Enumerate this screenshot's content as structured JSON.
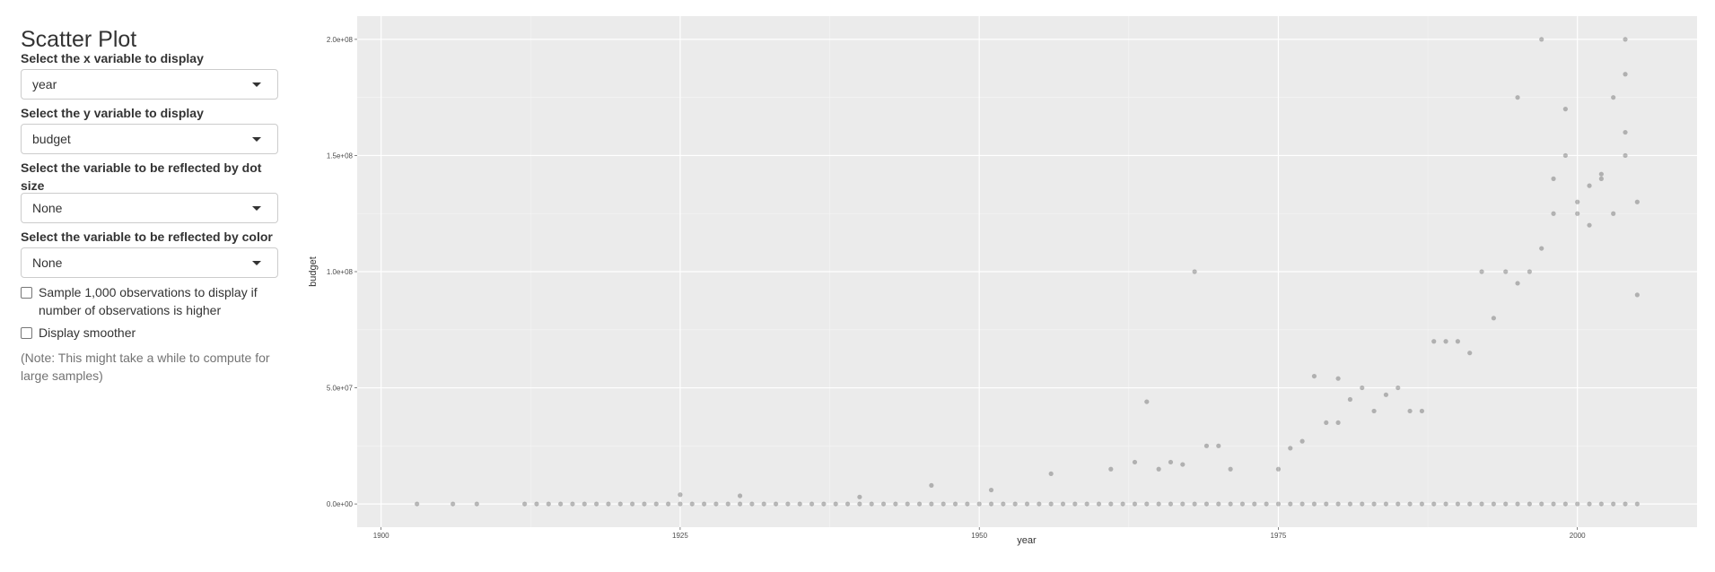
{
  "sidebar": {
    "title": "Scatter Plot",
    "x_label": "Select the x variable to display",
    "x_value": "year",
    "y_label": "Select the y variable to display",
    "y_value": "budget",
    "size_label": "Select the variable to be reflected by dot size",
    "size_value": "None",
    "color_label": "Select the variable to be reflected by color",
    "color_value": "None",
    "sample_label": "Sample 1,000 observations to display if number of observations is higher",
    "smoother_label": "Display smoother",
    "note": "(Note: This might take a while to compute for large samples)"
  },
  "chart_data": {
    "type": "scatter",
    "title": "",
    "xlabel": "year",
    "ylabel": "budget",
    "xlim": [
      1898,
      2010
    ],
    "ylim": [
      -10000000.0,
      210000000.0
    ],
    "xticks": [
      1900,
      1925,
      1950,
      1975,
      2000
    ],
    "xtick_labels": [
      "1900",
      "1925",
      "1950",
      "1975",
      "2000"
    ],
    "yticks": [
      0,
      50000000,
      100000000,
      150000000,
      200000000
    ],
    "ytick_labels": [
      "0.0e+00",
      "5.0e+07",
      "1.0e+08",
      "1.5e+08",
      "2.0e+08"
    ],
    "grid": true,
    "point_color": "#000000",
    "point_alpha": 0.25,
    "points": [
      [
        1903,
        0
      ],
      [
        1906,
        0
      ],
      [
        1908,
        0
      ],
      [
        1912,
        0
      ],
      [
        1913,
        0
      ],
      [
        1914,
        0
      ],
      [
        1915,
        0
      ],
      [
        1916,
        0
      ],
      [
        1917,
        0
      ],
      [
        1918,
        0
      ],
      [
        1919,
        0
      ],
      [
        1920,
        0
      ],
      [
        1921,
        0
      ],
      [
        1922,
        0
      ],
      [
        1923,
        0
      ],
      [
        1924,
        0
      ],
      [
        1925,
        0
      ],
      [
        1925,
        4000000
      ],
      [
        1926,
        0
      ],
      [
        1927,
        0
      ],
      [
        1928,
        0
      ],
      [
        1929,
        0
      ],
      [
        1930,
        0
      ],
      [
        1930,
        3500000
      ],
      [
        1931,
        0
      ],
      [
        1932,
        0
      ],
      [
        1933,
        0
      ],
      [
        1934,
        0
      ],
      [
        1935,
        0
      ],
      [
        1936,
        0
      ],
      [
        1937,
        0
      ],
      [
        1938,
        0
      ],
      [
        1939,
        0
      ],
      [
        1940,
        0
      ],
      [
        1940,
        3000000
      ],
      [
        1941,
        0
      ],
      [
        1942,
        0
      ],
      [
        1943,
        0
      ],
      [
        1944,
        0
      ],
      [
        1945,
        0
      ],
      [
        1946,
        0
      ],
      [
        1946,
        8000000
      ],
      [
        1947,
        0
      ],
      [
        1948,
        0
      ],
      [
        1949,
        0
      ],
      [
        1950,
        0
      ],
      [
        1951,
        0
      ],
      [
        1951,
        6000000
      ],
      [
        1952,
        0
      ],
      [
        1953,
        0
      ],
      [
        1954,
        0
      ],
      [
        1955,
        0
      ],
      [
        1956,
        0
      ],
      [
        1956,
        13000000
      ],
      [
        1957,
        0
      ],
      [
        1958,
        0
      ],
      [
        1959,
        0
      ],
      [
        1960,
        0
      ],
      [
        1961,
        0
      ],
      [
        1961,
        15000000
      ],
      [
        1962,
        0
      ],
      [
        1963,
        0
      ],
      [
        1963,
        18000000
      ],
      [
        1964,
        0
      ],
      [
        1964,
        44000000
      ],
      [
        1965,
        0
      ],
      [
        1965,
        15000000
      ],
      [
        1966,
        0
      ],
      [
        1966,
        18000000
      ],
      [
        1967,
        0
      ],
      [
        1967,
        17000000
      ],
      [
        1968,
        0
      ],
      [
        1968,
        100000000
      ],
      [
        1969,
        0
      ],
      [
        1969,
        25000000
      ],
      [
        1970,
        0
      ],
      [
        1970,
        25000000
      ],
      [
        1971,
        0
      ],
      [
        1971,
        15000000
      ],
      [
        1972,
        0
      ],
      [
        1973,
        0
      ],
      [
        1974,
        0
      ],
      [
        1975,
        0
      ],
      [
        1975,
        15000000
      ],
      [
        1976,
        0
      ],
      [
        1976,
        24000000
      ],
      [
        1977,
        0
      ],
      [
        1977,
        27000000
      ],
      [
        1978,
        0
      ],
      [
        1978,
        55000000
      ],
      [
        1979,
        0
      ],
      [
        1979,
        35000000
      ],
      [
        1980,
        0
      ],
      [
        1980,
        54000000
      ],
      [
        1980,
        35000000
      ],
      [
        1981,
        0
      ],
      [
        1981,
        45000000
      ],
      [
        1982,
        0
      ],
      [
        1982,
        50000000
      ],
      [
        1983,
        0
      ],
      [
        1983,
        40000000
      ],
      [
        1984,
        0
      ],
      [
        1984,
        47000000
      ],
      [
        1985,
        0
      ],
      [
        1985,
        50000000
      ],
      [
        1986,
        0
      ],
      [
        1986,
        40000000
      ],
      [
        1987,
        0
      ],
      [
        1987,
        40000000
      ],
      [
        1988,
        0
      ],
      [
        1988,
        70000000
      ],
      [
        1989,
        0
      ],
      [
        1989,
        70000000
      ],
      [
        1990,
        0
      ],
      [
        1990,
        70000000
      ],
      [
        1991,
        0
      ],
      [
        1991,
        65000000
      ],
      [
        1992,
        0
      ],
      [
        1992,
        100000000
      ],
      [
        1993,
        0
      ],
      [
        1993,
        80000000
      ],
      [
        1994,
        0
      ],
      [
        1994,
        100000000
      ],
      [
        1995,
        0
      ],
      [
        1995,
        175000000
      ],
      [
        1995,
        95000000
      ],
      [
        1996,
        0
      ],
      [
        1996,
        100000000
      ],
      [
        1997,
        0
      ],
      [
        1997,
        200000000
      ],
      [
        1997,
        110000000
      ],
      [
        1998,
        0
      ],
      [
        1998,
        140000000
      ],
      [
        1998,
        125000000
      ],
      [
        1999,
        0
      ],
      [
        1999,
        170000000
      ],
      [
        1999,
        150000000
      ],
      [
        2000,
        0
      ],
      [
        2000,
        130000000
      ],
      [
        2000,
        125000000
      ],
      [
        2001,
        0
      ],
      [
        2001,
        137000000
      ],
      [
        2001,
        120000000
      ],
      [
        2002,
        0
      ],
      [
        2002,
        142000000
      ],
      [
        2002,
        140000000
      ],
      [
        2003,
        0
      ],
      [
        2003,
        175000000
      ],
      [
        2003,
        125000000
      ],
      [
        2004,
        0
      ],
      [
        2004,
        200000000
      ],
      [
        2004,
        185000000
      ],
      [
        2004,
        160000000
      ],
      [
        2004,
        150000000
      ],
      [
        2005,
        0
      ],
      [
        2005,
        130000000
      ],
      [
        2005,
        90000000
      ]
    ]
  }
}
